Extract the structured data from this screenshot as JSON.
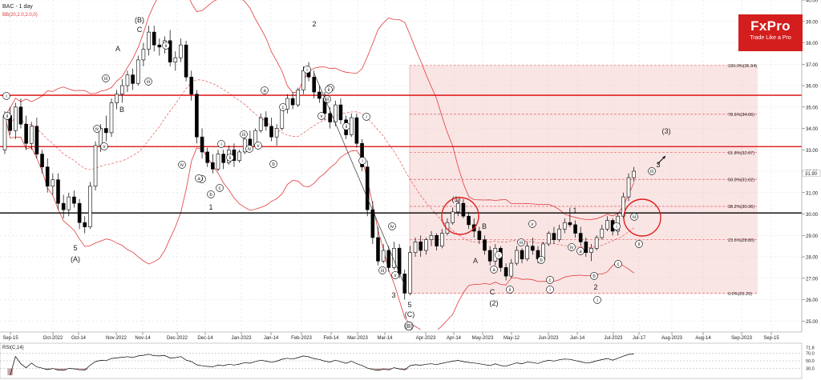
{
  "header": {
    "symbol": "BAC - 1 day",
    "indicator": "BB(20,2.0,2.0,0)"
  },
  "brand": {
    "name": "FxPro",
    "tagline": "Trade Like a Pro",
    "color": "#d41e1e"
  },
  "rsi": {
    "label": "RSI(C,14)",
    "value_label": "71.8"
  },
  "chart_data": {
    "type": "candlestick",
    "ylim": [
      24.6,
      40.0
    ],
    "x_tick_labels": [
      "Sep-15",
      "Oct-2022",
      "Oct-14",
      "Nov-2022",
      "Nov-14",
      "Dec-2022",
      "Dec-14",
      "Jan-2023",
      "Jan-14",
      "Feb-2023",
      "Feb-14",
      "Mar-2023",
      "Mar-14",
      "Apr-2023",
      "Apr-14",
      "May-2023",
      "May-12",
      "Jun-2023",
      "Jun-14",
      "Jul-2023",
      "Jul-17",
      "Aug-2023",
      "Aug-14",
      "Sep-2023",
      "Sep-15"
    ],
    "y_ticks": [
      25,
      26,
      27,
      28,
      29,
      30,
      31,
      32,
      33,
      34,
      35,
      36,
      37,
      38,
      39,
      40
    ],
    "y_tick_labels": [
      "25.00",
      "26.00",
      "27.00",
      "28.00",
      "29.00",
      "30.00",
      "31.00",
      "32.00",
      "33.00",
      "34.00",
      "35.00",
      "36.00",
      "37.00",
      "38.00",
      "39.00",
      "40.00"
    ],
    "current_price_label": "31.90",
    "horizontal_lines": [
      {
        "value": 35.55,
        "color": "#dd0000"
      },
      {
        "value": 33.15,
        "color": "#dd0000"
      },
      {
        "value": 30.05,
        "color": "#000000"
      }
    ],
    "fibonacci": {
      "levels": [
        {
          "label": "100.0%(36.94)",
          "value": 36.94
        },
        {
          "label": "78.6%(34.66)",
          "value": 34.66
        },
        {
          "label": "61.8%(32.87)",
          "value": 32.87
        },
        {
          "label": "50.0%(31.62)",
          "value": 31.62
        },
        {
          "label": "38.2%(30.36)",
          "value": 30.36
        },
        {
          "label": "23.6%(28.80)",
          "value": 28.8
        },
        {
          "label": "0.0%(26.29)",
          "value": 26.29
        }
      ]
    },
    "wave_labels": [
      "(B)",
      "C",
      "A",
      "B",
      "2",
      "5",
      "(A)",
      "1",
      "(iii)",
      "(iv)",
      "(v)",
      "4",
      "3",
      "5",
      "(C)",
      "(B)",
      "(1)",
      "A",
      "B",
      "C",
      "(2)",
      "1",
      "2",
      "3",
      "(3)",
      "i",
      "ii",
      "iii",
      "iv",
      "v",
      "a",
      "b",
      "c"
    ],
    "candles": [
      [
        33.0,
        34.8,
        32.8,
        34.6
      ],
      [
        34.6,
        35.0,
        33.7,
        33.9
      ],
      [
        33.9,
        35.2,
        33.5,
        35.0
      ],
      [
        35.0,
        35.4,
        34.0,
        34.2
      ],
      [
        34.2,
        34.6,
        33.0,
        33.3
      ],
      [
        33.3,
        34.3,
        33.0,
        34.1
      ],
      [
        34.1,
        34.5,
        32.6,
        32.8
      ],
      [
        32.8,
        33.0,
        31.9,
        32.2
      ],
      [
        32.2,
        32.6,
        31.0,
        31.3
      ],
      [
        31.3,
        31.9,
        30.9,
        31.6
      ],
      [
        31.6,
        31.9,
        30.2,
        30.5
      ],
      [
        30.5,
        30.9,
        29.8,
        30.2
      ],
      [
        30.2,
        31.0,
        29.9,
        30.8
      ],
      [
        30.8,
        31.1,
        30.3,
        30.5
      ],
      [
        30.5,
        30.7,
        29.3,
        29.6
      ],
      [
        29.6,
        29.9,
        29.1,
        29.4
      ],
      [
        29.4,
        31.5,
        29.3,
        31.3
      ],
      [
        31.3,
        33.4,
        31.1,
        33.2
      ],
      [
        33.2,
        34.2,
        32.9,
        34.0
      ],
      [
        34.0,
        34.6,
        33.4,
        33.8
      ],
      [
        33.8,
        35.4,
        33.6,
        35.2
      ],
      [
        35.2,
        35.8,
        34.9,
        35.6
      ],
      [
        35.6,
        36.3,
        35.2,
        36.0
      ],
      [
        36.0,
        36.7,
        35.7,
        36.5
      ],
      [
        36.5,
        36.8,
        35.8,
        36.1
      ],
      [
        36.1,
        37.4,
        36.0,
        37.2
      ],
      [
        37.2,
        38.0,
        36.9,
        37.7
      ],
      [
        37.7,
        38.8,
        37.4,
        38.5
      ],
      [
        38.5,
        38.8,
        37.6,
        37.9
      ],
      [
        37.9,
        38.2,
        37.4,
        37.8
      ],
      [
        37.8,
        38.3,
        37.5,
        38.1
      ],
      [
        38.1,
        38.6,
        36.9,
        37.1
      ],
      [
        37.1,
        37.6,
        36.7,
        37.3
      ],
      [
        37.3,
        38.2,
        37.1,
        37.9
      ],
      [
        37.9,
        38.1,
        36.2,
        36.4
      ],
      [
        36.4,
        36.7,
        35.3,
        35.6
      ],
      [
        35.6,
        35.8,
        33.3,
        33.6
      ],
      [
        33.6,
        34.0,
        32.6,
        32.9
      ],
      [
        32.9,
        33.1,
        32.2,
        32.4
      ],
      [
        32.4,
        32.8,
        31.9,
        32.1
      ],
      [
        32.1,
        33.0,
        32.0,
        32.8
      ],
      [
        32.8,
        33.0,
        32.1,
        32.4
      ],
      [
        32.4,
        33.2,
        32.3,
        33.0
      ],
      [
        33.0,
        33.3,
        32.2,
        32.5
      ],
      [
        32.5,
        33.0,
        32.4,
        32.9
      ],
      [
        32.9,
        33.7,
        32.8,
        33.5
      ],
      [
        33.5,
        33.9,
        33.0,
        33.2
      ],
      [
        33.2,
        34.0,
        33.1,
        33.9
      ],
      [
        33.9,
        34.7,
        33.8,
        34.5
      ],
      [
        34.5,
        34.8,
        33.9,
        34.1
      ],
      [
        34.1,
        34.5,
        33.4,
        33.6
      ],
      [
        33.6,
        34.2,
        33.2,
        34.0
      ],
      [
        34.0,
        35.1,
        33.9,
        34.9
      ],
      [
        34.9,
        35.6,
        34.7,
        35.4
      ],
      [
        35.4,
        35.7,
        34.9,
        35.1
      ],
      [
        35.1,
        35.9,
        35.0,
        35.8
      ],
      [
        35.8,
        36.9,
        35.6,
        36.7
      ],
      [
        36.7,
        37.1,
        36.2,
        36.4
      ],
      [
        36.4,
        36.7,
        35.4,
        35.7
      ],
      [
        35.7,
        36.0,
        35.2,
        35.4
      ],
      [
        35.4,
        35.7,
        34.4,
        34.7
      ],
      [
        34.7,
        35.0,
        34.0,
        34.3
      ],
      [
        34.3,
        35.3,
        34.1,
        35.1
      ],
      [
        35.1,
        35.4,
        34.2,
        34.4
      ],
      [
        34.4,
        34.6,
        33.5,
        33.7
      ],
      [
        33.7,
        34.7,
        33.6,
        34.5
      ],
      [
        34.5,
        34.7,
        33.1,
        33.3
      ],
      [
        33.3,
        33.5,
        32.0,
        32.2
      ],
      [
        32.2,
        32.5,
        29.9,
        30.2
      ],
      [
        30.2,
        30.6,
        28.6,
        28.9
      ],
      [
        28.9,
        29.4,
        27.6,
        27.8
      ],
      [
        27.8,
        28.6,
        27.7,
        28.3
      ],
      [
        28.3,
        28.5,
        27.3,
        27.5
      ],
      [
        27.5,
        28.7,
        27.4,
        28.4
      ],
      [
        28.4,
        28.6,
        27.0,
        27.2
      ],
      [
        27.2,
        27.4,
        26.0,
        26.3
      ],
      [
        26.3,
        28.5,
        26.2,
        28.2
      ],
      [
        28.2,
        28.9,
        28.0,
        28.7
      ],
      [
        28.7,
        29.0,
        28.0,
        28.3
      ],
      [
        28.3,
        28.9,
        28.1,
        28.8
      ],
      [
        28.8,
        29.2,
        28.5,
        29.0
      ],
      [
        29.0,
        29.1,
        28.3,
        28.5
      ],
      [
        28.5,
        29.3,
        28.4,
        29.1
      ],
      [
        29.1,
        29.8,
        29.0,
        29.6
      ],
      [
        29.6,
        30.3,
        29.5,
        30.1
      ],
      [
        30.1,
        30.7,
        29.9,
        30.5
      ],
      [
        30.5,
        30.7,
        29.8,
        29.9
      ],
      [
        29.9,
        30.1,
        29.3,
        29.5
      ],
      [
        29.5,
        29.8,
        28.9,
        29.2
      ],
      [
        29.2,
        29.4,
        28.6,
        28.8
      ],
      [
        28.8,
        29.0,
        28.1,
        28.3
      ],
      [
        28.3,
        28.5,
        27.6,
        27.8
      ],
      [
        27.8,
        28.6,
        27.6,
        28.4
      ],
      [
        28.4,
        28.5,
        27.3,
        27.5
      ],
      [
        27.5,
        27.7,
        26.9,
        27.1
      ],
      [
        27.1,
        27.9,
        27.0,
        27.7
      ],
      [
        27.7,
        28.5,
        27.6,
        28.3
      ],
      [
        28.3,
        28.4,
        27.7,
        27.9
      ],
      [
        27.9,
        28.7,
        27.8,
        28.5
      ],
      [
        28.5,
        28.9,
        28.1,
        28.3
      ],
      [
        28.3,
        28.5,
        27.7,
        27.9
      ],
      [
        27.9,
        28.7,
        27.8,
        28.6
      ],
      [
        28.6,
        29.2,
        28.5,
        29.1
      ],
      [
        29.1,
        29.4,
        28.6,
        28.8
      ],
      [
        28.8,
        29.5,
        28.7,
        29.3
      ],
      [
        29.3,
        29.8,
        29.1,
        29.6
      ],
      [
        29.6,
        30.3,
        29.4,
        29.5
      ],
      [
        29.5,
        29.7,
        28.9,
        29.1
      ],
      [
        29.1,
        29.4,
        28.5,
        28.7
      ],
      [
        28.7,
        28.9,
        28.0,
        28.2
      ],
      [
        28.2,
        28.6,
        27.8,
        28.4
      ],
      [
        28.4,
        29.0,
        28.3,
        28.9
      ],
      [
        28.9,
        29.5,
        28.8,
        29.3
      ],
      [
        29.3,
        29.9,
        29.2,
        29.7
      ],
      [
        29.7,
        29.8,
        29.0,
        29.2
      ],
      [
        29.2,
        30.0,
        29.0,
        29.9
      ],
      [
        29.9,
        31.0,
        29.8,
        30.8
      ],
      [
        30.8,
        31.9,
        30.6,
        31.7
      ],
      [
        31.7,
        32.2,
        31.5,
        32.0
      ]
    ]
  }
}
